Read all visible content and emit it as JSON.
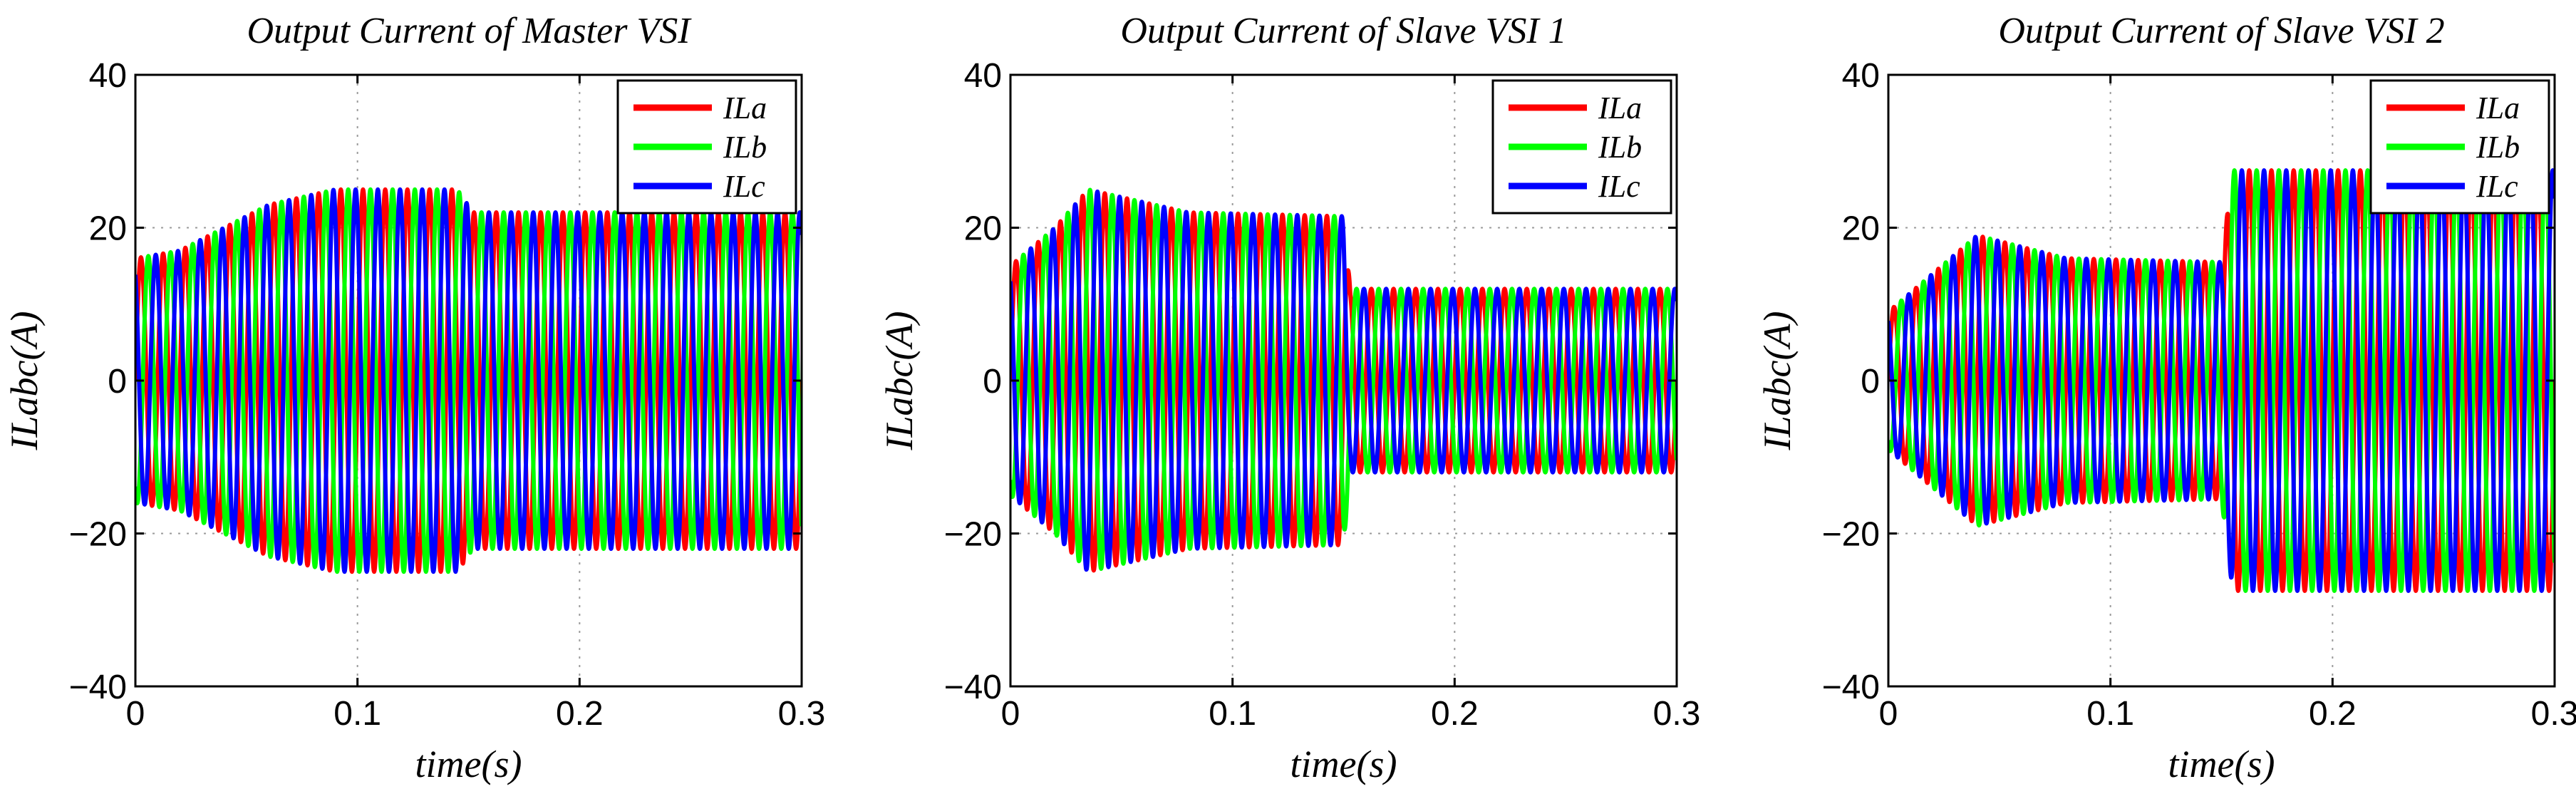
{
  "figure": {
    "name": "three-phase-output-currents"
  },
  "chart_data": [
    {
      "type": "line",
      "title": "Output Current of Master VSI",
      "xlabel": "time(s)",
      "ylabel": "ILabc(A)",
      "xlim": [
        0,
        0.3
      ],
      "ylim": [
        -40,
        40
      ],
      "xticks": [
        0,
        0.1,
        0.2,
        0.3
      ],
      "xtick_labels": [
        "0",
        "0.1",
        "0.2",
        "0.3"
      ],
      "yticks": [
        -40,
        -20,
        0,
        20,
        40
      ],
      "ytick_labels": [
        "−40",
        "−20",
        "0",
        "20",
        "40"
      ],
      "grid": true,
      "legend_position": "top-right",
      "frequency_hz": 100,
      "envelope": {
        "t": [
          0,
          0.02,
          0.06,
          0.09,
          0.145,
          0.152,
          0.3
        ],
        "amp": [
          16,
          17,
          23,
          25,
          25,
          22,
          22
        ]
      },
      "series": [
        {
          "name": "ILa",
          "color": "#ff0000",
          "phase_deg": 0
        },
        {
          "name": "ILb",
          "color": "#00ff00",
          "phase_deg": -120
        },
        {
          "name": "ILc",
          "color": "#0000ff",
          "phase_deg": 120
        }
      ]
    },
    {
      "type": "line",
      "title": "Output Current of Slave VSI 1",
      "xlabel": "time(s)",
      "ylabel": "ILabc(A)",
      "xlim": [
        0,
        0.3
      ],
      "ylim": [
        -40,
        40
      ],
      "xticks": [
        0,
        0.1,
        0.2,
        0.3
      ],
      "xtick_labels": [
        "0",
        "0.1",
        "0.2",
        "0.3"
      ],
      "yticks": [
        -40,
        -20,
        0,
        20,
        40
      ],
      "ytick_labels": [
        "−40",
        "−20",
        "0",
        "20",
        "40"
      ],
      "grid": true,
      "legend_position": "top-right",
      "frequency_hz": 100,
      "envelope": {
        "t": [
          0,
          0.02,
          0.035,
          0.08,
          0.15,
          0.153,
          0.3
        ],
        "amp": [
          15,
          20,
          25,
          22,
          21.5,
          12,
          12
        ]
      },
      "series": [
        {
          "name": "ILa",
          "color": "#ff0000",
          "phase_deg": 0
        },
        {
          "name": "ILb",
          "color": "#00ff00",
          "phase_deg": -120
        },
        {
          "name": "ILc",
          "color": "#0000ff",
          "phase_deg": 120
        }
      ]
    },
    {
      "type": "line",
      "title": "Output Current of Slave VSI 2",
      "xlabel": "time(s)",
      "ylabel": "ILabc(A)",
      "xlim": [
        0,
        0.3
      ],
      "ylim": [
        -40,
        40
      ],
      "xticks": [
        0,
        0.1,
        0.2,
        0.3
      ],
      "xtick_labels": [
        "0",
        "0.1",
        "0.2",
        "0.3"
      ],
      "yticks": [
        -40,
        -20,
        0,
        20,
        40
      ],
      "ytick_labels": [
        "−40",
        "−20",
        "0",
        "20",
        "40"
      ],
      "grid": true,
      "legend_position": "top-right",
      "frequency_hz": 100,
      "envelope": {
        "t": [
          0,
          0.02,
          0.04,
          0.08,
          0.15,
          0.155,
          0.3
        ],
        "amp": [
          9,
          14,
          19,
          16,
          15.5,
          27.5,
          27.5
        ]
      },
      "series": [
        {
          "name": "ILa",
          "color": "#ff0000",
          "phase_deg": 0
        },
        {
          "name": "ILb",
          "color": "#00ff00",
          "phase_deg": -120
        },
        {
          "name": "ILc",
          "color": "#0000ff",
          "phase_deg": 120
        }
      ]
    }
  ]
}
